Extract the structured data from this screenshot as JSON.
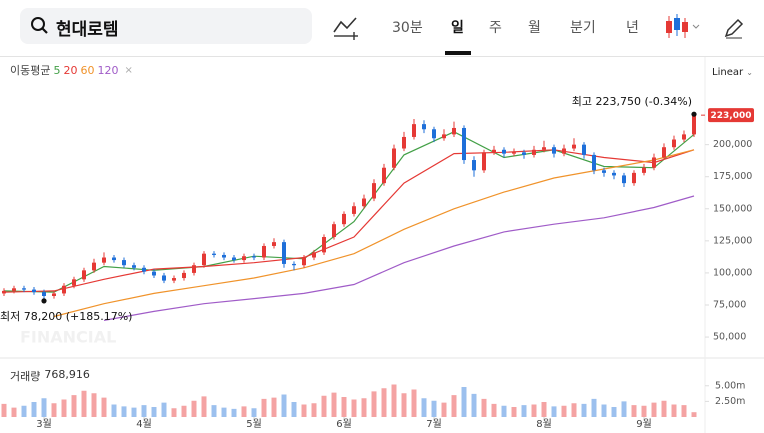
{
  "toolbar": {
    "search": "현대로템",
    "tabs": [
      "30분",
      "일",
      "주",
      "월",
      "분기",
      "년"
    ],
    "selected": 1
  },
  "chart_data": {
    "type": "candlestick",
    "scale_label": "Linear",
    "ma_label": "이동평균",
    "watermark": "FINANCIAL",
    "up_color": "#e53935",
    "down_color": "#1e6fd9",
    "ylim": [
      36000,
      266000
    ],
    "yticks": [
      {
        "value": 50000,
        "label": "50,000"
      },
      {
        "value": 75000,
        "label": "75,000"
      },
      {
        "value": 100000,
        "label": "100,000"
      },
      {
        "value": 125000,
        "label": "125,000"
      },
      {
        "value": 150000,
        "label": "150,000"
      },
      {
        "value": 175000,
        "label": "175,000"
      },
      {
        "value": 200000,
        "label": "200,000"
      }
    ],
    "xticks": [
      {
        "value": 4,
        "label": "3월"
      },
      {
        "value": 14,
        "label": "4월"
      },
      {
        "value": 25,
        "label": "5월"
      },
      {
        "value": 34,
        "label": "6월"
      },
      {
        "value": 43,
        "label": "7월"
      },
      {
        "value": 54,
        "label": "8월"
      },
      {
        "value": 64,
        "label": "9월"
      }
    ],
    "ohlc": [
      [
        84000,
        88000,
        82000,
        86000
      ],
      [
        86000,
        90000,
        84000,
        88000
      ],
      [
        88000,
        90000,
        85000,
        87000
      ],
      [
        87000,
        89000,
        83000,
        85000
      ],
      [
        85000,
        87000,
        78200,
        82000
      ],
      [
        82000,
        86000,
        80000,
        84000
      ],
      [
        84000,
        92000,
        82000,
        90000
      ],
      [
        90000,
        97000,
        88000,
        95000
      ],
      [
        95000,
        104000,
        93000,
        102000
      ],
      [
        102000,
        111000,
        100000,
        108000
      ],
      [
        108000,
        116000,
        106000,
        112000
      ],
      [
        112000,
        114000,
        108000,
        110000
      ],
      [
        110000,
        112000,
        104000,
        106000
      ],
      [
        106000,
        108000,
        102000,
        104000
      ],
      [
        104000,
        106000,
        99000,
        101000
      ],
      [
        101000,
        103000,
        96000,
        98000
      ],
      [
        98000,
        100000,
        92000,
        94000
      ],
      [
        94000,
        98000,
        92000,
        96000
      ],
      [
        96000,
        102000,
        94000,
        100000
      ],
      [
        100000,
        108000,
        98000,
        106000
      ],
      [
        106000,
        117000,
        104000,
        115000
      ],
      [
        115000,
        117000,
        112000,
        114000
      ],
      [
        114000,
        116000,
        110000,
        112000
      ],
      [
        112000,
        114000,
        108000,
        110000
      ],
      [
        110000,
        115000,
        108000,
        113000
      ],
      [
        113000,
        115000,
        110000,
        112000
      ],
      [
        112000,
        123000,
        110000,
        121000
      ],
      [
        121000,
        127000,
        119000,
        124000
      ],
      [
        124000,
        126000,
        104000,
        107000
      ],
      [
        107000,
        109000,
        102000,
        106000
      ],
      [
        106000,
        114000,
        104000,
        112000
      ],
      [
        112000,
        118000,
        110000,
        116000
      ],
      [
        116000,
        130000,
        114000,
        128000
      ],
      [
        128000,
        140000,
        126000,
        138000
      ],
      [
        138000,
        148000,
        136000,
        146000
      ],
      [
        146000,
        155000,
        144000,
        152000
      ],
      [
        152000,
        161000,
        150000,
        158000
      ],
      [
        158000,
        173000,
        156000,
        170000
      ],
      [
        170000,
        185000,
        168000,
        182000
      ],
      [
        182000,
        200000,
        180000,
        197000
      ],
      [
        197000,
        210000,
        195000,
        206000
      ],
      [
        206000,
        220000,
        204000,
        216000
      ],
      [
        216000,
        219000,
        209000,
        212000
      ],
      [
        212000,
        214000,
        202000,
        205000
      ],
      [
        205000,
        212000,
        203000,
        208000
      ],
      [
        208000,
        218000,
        206000,
        213000
      ],
      [
        213000,
        215000,
        185000,
        188000
      ],
      [
        188000,
        191000,
        175000,
        180000
      ],
      [
        180000,
        196000,
        178000,
        194000
      ],
      [
        194000,
        199000,
        192000,
        196000
      ],
      [
        196000,
        198000,
        190000,
        193000
      ],
      [
        193000,
        197000,
        191000,
        194000
      ],
      [
        194000,
        196000,
        189000,
        192000
      ],
      [
        192000,
        199000,
        190000,
        196000
      ],
      [
        196000,
        203000,
        194000,
        198000
      ],
      [
        198000,
        200000,
        190000,
        193000
      ],
      [
        193000,
        200000,
        191000,
        197000
      ],
      [
        197000,
        205000,
        195000,
        200000
      ],
      [
        200000,
        202000,
        189000,
        192000
      ],
      [
        192000,
        194000,
        177000,
        180000
      ],
      [
        180000,
        182000,
        175000,
        178000
      ],
      [
        178000,
        180000,
        173000,
        176000
      ],
      [
        176000,
        178000,
        167000,
        170000
      ],
      [
        170000,
        180000,
        168000,
        178000
      ],
      [
        178000,
        185000,
        176000,
        182000
      ],
      [
        182000,
        193000,
        180000,
        190000
      ],
      [
        190000,
        201000,
        188000,
        198000
      ],
      [
        198000,
        207000,
        196000,
        204000
      ],
      [
        204000,
        211000,
        202000,
        208000
      ],
      [
        208000,
        223750,
        206000,
        223000
      ]
    ],
    "ma": [
      {
        "name": "5",
        "color": "#43a047",
        "x": [
          0,
          5,
          10,
          15,
          20,
          25,
          30,
          35,
          40,
          45,
          50,
          55,
          60,
          65,
          69
        ],
        "values": [
          86000,
          85000,
          105000,
          102000,
          105000,
          113000,
          111000,
          140000,
          192000,
          210000,
          190000,
          196000,
          183000,
          182000,
          208000
        ]
      },
      {
        "name": "20",
        "color": "#e53935",
        "x": [
          0,
          5,
          10,
          15,
          20,
          25,
          30,
          35,
          40,
          45,
          50,
          55,
          60,
          65,
          69
        ],
        "values": [
          85000,
          86000,
          95000,
          103000,
          105000,
          108000,
          112000,
          128000,
          170000,
          193000,
          194000,
          196000,
          190000,
          186000,
          196000
        ]
      },
      {
        "name": "60",
        "color": "#f0932b",
        "x": [
          5,
          10,
          15,
          20,
          25,
          30,
          35,
          40,
          45,
          50,
          55,
          60,
          65,
          69
        ],
        "values": [
          66000,
          76000,
          84000,
          90000,
          96000,
          104000,
          115000,
          134000,
          150000,
          163000,
          174000,
          181000,
          188000,
          196000
        ]
      },
      {
        "name": "120",
        "color": "#a05cc8",
        "x": [
          10,
          15,
          20,
          25,
          30,
          35,
          40,
          45,
          50,
          55,
          60,
          65,
          69
        ],
        "values": [
          63000,
          70000,
          76000,
          80000,
          84000,
          91000,
          108000,
          121000,
          132000,
          138000,
          143000,
          151000,
          160000
        ]
      }
    ],
    "last_price": {
      "value": 223000,
      "label": "223,000"
    },
    "annotations": [
      {
        "text": "최고 223,750 (-0.34%)",
        "index": 69,
        "value": 223750
      },
      {
        "text": "최저 78,200 (+185.17%)",
        "index": 4,
        "value": 78200
      }
    ],
    "volume": {
      "label": "거래량",
      "current_label": "768,916",
      "ylim": [
        0,
        8000000
      ],
      "yticks": [
        {
          "value": 2500000,
          "label": "2.50m"
        },
        {
          "value": 5000000,
          "label": "5.00m"
        }
      ],
      "values": [
        2100000,
        1500000,
        1800000,
        2400000,
        3000000,
        2200000,
        2800000,
        3500000,
        4200000,
        3800000,
        3100000,
        2000000,
        1700000,
        1500000,
        1900000,
        1600000,
        2300000,
        1400000,
        1800000,
        2600000,
        3300000,
        1900000,
        1500000,
        1300000,
        1700000,
        1400000,
        2900000,
        3100000,
        3600000,
        2400000,
        2000000,
        2200000,
        3400000,
        3900000,
        3200000,
        2800000,
        3000000,
        4100000,
        4600000,
        5200000,
        3800000,
        4400000,
        3000000,
        2600000,
        2300000,
        3500000,
        4800000,
        3700000,
        2900000,
        2100000,
        1800000,
        1600000,
        1900000,
        2000000,
        2400000,
        1700000,
        1800000,
        2200000,
        2100000,
        2900000,
        2000000,
        1600000,
        2500000,
        1900000,
        1800000,
        2300000,
        2600000,
        2000000,
        1900000,
        768916
      ]
    }
  }
}
